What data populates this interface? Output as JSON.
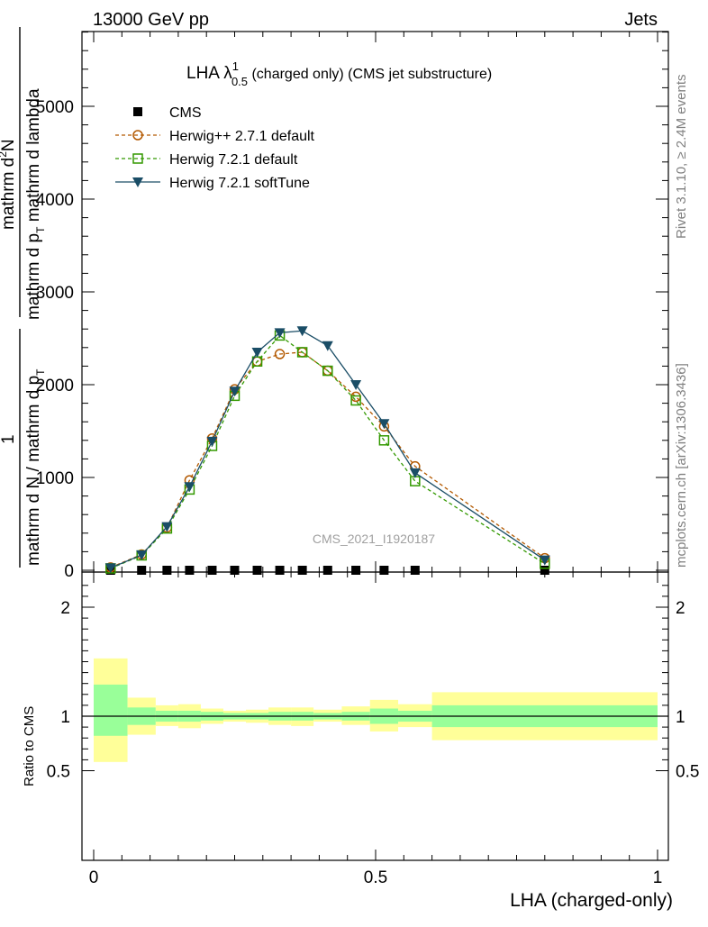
{
  "header": {
    "left": "13000 GeV pp",
    "right": "Jets"
  },
  "side": {
    "rivet": "Rivet 3.1.10, ≥ 2.4M events",
    "mcplots": "mcplots.cern.ch [arXiv:1306.3436]"
  },
  "title": {
    "main": "LHA λ",
    "sup": "1",
    "sub": "0.5",
    "rest": " (charged only) (CMS jet substructure)"
  },
  "watermark": "CMS_2021_I1920187",
  "ylabel_main": {
    "num_top": "mathrm d",
    "num_top_sup": "2",
    "num_top_rest": "N",
    "den_top": "mathrm d p",
    "den_top_sub": "T",
    "den_top_rest": " mathrm d lambda",
    "one": "1",
    "den_bottom": "mathrm d N / mathrm d p",
    "den_bottom_sub": "T"
  },
  "ylabel_ratio": "Ratio to CMS",
  "xlabel": "LHA (charged-only)",
  "colors": {
    "cms": "#000000",
    "herwig_pp": "#b35900",
    "herwig_default": "#339900",
    "herwig_soft": "#1a4d66",
    "band_inner": "#99ff99",
    "band_outer": "#ffff99"
  },
  "chart_data": [
    {
      "type": "line",
      "panel": "main",
      "ylim": [
        0,
        6000
      ],
      "xlim": [
        0,
        1
      ],
      "yticks": [
        0,
        1000,
        2000,
        3000,
        4000,
        5000
      ],
      "ytick_labels": [
        "0",
        "1000",
        "2000",
        "3000",
        "4000",
        "5000"
      ],
      "legend": "top-left",
      "series": [
        {
          "name": "CMS",
          "marker": "square",
          "x": [
            0.03,
            0.085,
            0.13,
            0.17,
            0.21,
            0.25,
            0.29,
            0.33,
            0.37,
            0.415,
            0.465,
            0.515,
            0.57,
            0.8
          ],
          "values": [
            0,
            0,
            0,
            0,
            0,
            0,
            0,
            0,
            0,
            0,
            0,
            0,
            0,
            0
          ]
        },
        {
          "name": "Herwig++ 2.7.1 default",
          "marker": "open-circle",
          "x": [
            0.03,
            0.085,
            0.13,
            0.17,
            0.21,
            0.25,
            0.29,
            0.33,
            0.37,
            0.415,
            0.465,
            0.515,
            0.57,
            0.8
          ],
          "values": [
            30,
            170,
            460,
            970,
            1420,
            1950,
            2250,
            2330,
            2350,
            2150,
            1870,
            1550,
            1120,
            130
          ]
        },
        {
          "name": "Herwig 7.2.1 default",
          "marker": "open-square",
          "x": [
            0.03,
            0.085,
            0.13,
            0.17,
            0.21,
            0.25,
            0.29,
            0.33,
            0.37,
            0.415,
            0.465,
            0.515,
            0.57,
            0.8
          ],
          "values": [
            20,
            160,
            450,
            870,
            1340,
            1880,
            2250,
            2530,
            2350,
            2150,
            1830,
            1400,
            960,
            70
          ]
        },
        {
          "name": "Herwig 7.2.1 softTune",
          "marker": "filled-triangle-down",
          "x": [
            0.03,
            0.085,
            0.13,
            0.17,
            0.21,
            0.25,
            0.29,
            0.33,
            0.37,
            0.415,
            0.465,
            0.515,
            0.57,
            0.8
          ],
          "values": [
            25,
            165,
            470,
            900,
            1390,
            1930,
            2350,
            2560,
            2580,
            2420,
            2000,
            1580,
            1050,
            110
          ]
        }
      ]
    },
    {
      "type": "area",
      "panel": "ratio",
      "ylabel": "Ratio to CMS",
      "xlabel": "LHA (charged-only)",
      "xlim": [
        0,
        1
      ],
      "ylim": [
        0.35,
        2.3
      ],
      "yticks": [
        0.5,
        1,
        2
      ],
      "ytick_labels": [
        "0.5",
        "1",
        "2"
      ],
      "xticks": [
        0,
        0.5,
        1
      ],
      "xtick_labels": [
        "0",
        "0.5",
        "1"
      ],
      "bins": [
        {
          "x0": 0.0,
          "x1": 0.06,
          "in_lo": 0.82,
          "in_hi": 1.29,
          "out_lo": 0.58,
          "out_hi": 1.53
        },
        {
          "x0": 0.06,
          "x1": 0.11,
          "in_lo": 0.92,
          "in_hi": 1.08,
          "out_lo": 0.83,
          "out_hi": 1.17
        },
        {
          "x0": 0.11,
          "x1": 0.15,
          "in_lo": 0.95,
          "in_hi": 1.05,
          "out_lo": 0.91,
          "out_hi": 1.1
        },
        {
          "x0": 0.15,
          "x1": 0.19,
          "in_lo": 0.95,
          "in_hi": 1.05,
          "out_lo": 0.89,
          "out_hi": 1.11
        },
        {
          "x0": 0.19,
          "x1": 0.23,
          "in_lo": 0.96,
          "in_hi": 1.04,
          "out_lo": 0.93,
          "out_hi": 1.07
        },
        {
          "x0": 0.23,
          "x1": 0.27,
          "in_lo": 0.97,
          "in_hi": 1.03,
          "out_lo": 0.95,
          "out_hi": 1.05
        },
        {
          "x0": 0.27,
          "x1": 0.31,
          "in_lo": 0.97,
          "in_hi": 1.03,
          "out_lo": 0.94,
          "out_hi": 1.06
        },
        {
          "x0": 0.31,
          "x1": 0.35,
          "in_lo": 0.96,
          "in_hi": 1.04,
          "out_lo": 0.92,
          "out_hi": 1.08
        },
        {
          "x0": 0.35,
          "x1": 0.39,
          "in_lo": 0.96,
          "in_hi": 1.04,
          "out_lo": 0.91,
          "out_hi": 1.08
        },
        {
          "x0": 0.39,
          "x1": 0.44,
          "in_lo": 0.97,
          "in_hi": 1.03,
          "out_lo": 0.95,
          "out_hi": 1.06
        },
        {
          "x0": 0.44,
          "x1": 0.49,
          "in_lo": 0.96,
          "in_hi": 1.04,
          "out_lo": 0.92,
          "out_hi": 1.09
        },
        {
          "x0": 0.49,
          "x1": 0.54,
          "in_lo": 0.93,
          "in_hi": 1.07,
          "out_lo": 0.86,
          "out_hi": 1.15
        },
        {
          "x0": 0.54,
          "x1": 0.6,
          "in_lo": 0.95,
          "in_hi": 1.05,
          "out_lo": 0.9,
          "out_hi": 1.11
        },
        {
          "x0": 0.6,
          "x1": 1.0,
          "in_lo": 0.9,
          "in_hi": 1.1,
          "out_lo": 0.78,
          "out_hi": 1.22
        }
      ],
      "reference_line": 1
    }
  ]
}
